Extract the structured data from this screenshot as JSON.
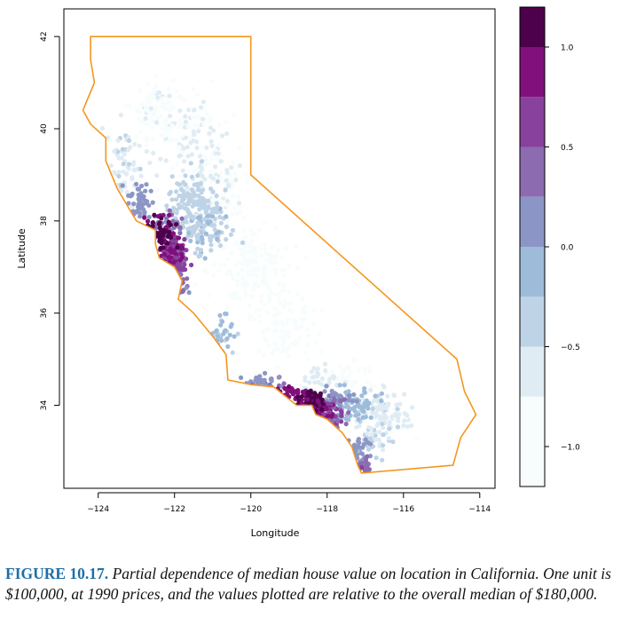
{
  "figure": {
    "caption_label": "FIGURE 10.17.",
    "caption_text": "Partial dependence of median house value on location in California. One unit is $100,000, at 1990 prices, and the values plotted are relative to the overall median of $180,000."
  },
  "chart_data": {
    "type": "scatter",
    "title": "",
    "xlabel": "Longitude",
    "ylabel": "Latitude",
    "xlim": [
      -124.9,
      -113.6
    ],
    "ylim": [
      32.2,
      42.6
    ],
    "xticks": [
      -124,
      -122,
      -120,
      -118,
      -116,
      -114
    ],
    "yticks": [
      34,
      36,
      38,
      40,
      42
    ],
    "xtick_labels": [
      "−124",
      "−122",
      "−120",
      "−118",
      "−116",
      "−114"
    ],
    "ytick_labels": [
      "34",
      "36",
      "38",
      "40",
      "42"
    ],
    "grid": false,
    "state_outline_color": "#f5961e",
    "state_outline": [
      [
        -124.2,
        42.0
      ],
      [
        -120.0,
        42.0
      ],
      [
        -120.0,
        39.0
      ],
      [
        -114.6,
        35.0
      ],
      [
        -114.4,
        34.3
      ],
      [
        -114.1,
        33.8
      ],
      [
        -114.5,
        33.3
      ],
      [
        -114.7,
        32.7
      ],
      [
        -117.1,
        32.53
      ],
      [
        -117.2,
        32.7
      ],
      [
        -117.35,
        33.1
      ],
      [
        -117.6,
        33.4
      ],
      [
        -118.0,
        33.7
      ],
      [
        -118.3,
        33.8
      ],
      [
        -118.4,
        34.0
      ],
      [
        -118.8,
        34.0
      ],
      [
        -119.4,
        34.4
      ],
      [
        -120.0,
        34.45
      ],
      [
        -120.6,
        34.55
      ],
      [
        -120.65,
        35.1
      ],
      [
        -121.0,
        35.5
      ],
      [
        -121.5,
        36.0
      ],
      [
        -121.9,
        36.3
      ],
      [
        -121.8,
        36.7
      ],
      [
        -122.0,
        37.0
      ],
      [
        -122.4,
        37.2
      ],
      [
        -122.5,
        37.5
      ],
      [
        -122.5,
        37.8
      ],
      [
        -123.0,
        38.0
      ],
      [
        -123.5,
        38.7
      ],
      [
        -123.8,
        39.3
      ],
      [
        -123.8,
        39.8
      ],
      [
        -124.2,
        40.1
      ],
      [
        -124.4,
        40.4
      ],
      [
        -124.1,
        41.0
      ],
      [
        -124.2,
        41.5
      ],
      [
        -124.2,
        42.0
      ]
    ],
    "colorbar": {
      "range": [
        -1.2,
        1.2
      ],
      "ticks": [
        1.0,
        0.5,
        0.0,
        -0.5,
        -1.0
      ],
      "tick_labels": [
        "1.0",
        "0.5",
        "0.0",
        "−0.5",
        "−1.0"
      ],
      "bins": [
        {
          "from": 1.0,
          "to": 1.2,
          "color": "#4d004b"
        },
        {
          "from": 0.75,
          "to": 1.0,
          "color": "#810f7c"
        },
        {
          "from": 0.5,
          "to": 0.75,
          "color": "#88419d"
        },
        {
          "from": 0.25,
          "to": 0.5,
          "color": "#8c6bb1"
        },
        {
          "from": 0.0,
          "to": 0.25,
          "color": "#8c96c6"
        },
        {
          "from": -0.25,
          "to": 0.0,
          "color": "#9ebcda"
        },
        {
          "from": -0.5,
          "to": -0.25,
          "color": "#bfd3e6"
        },
        {
          "from": -0.75,
          "to": -0.5,
          "color": "#e0ecf4"
        },
        {
          "from": -1.2,
          "to": -0.75,
          "color": "#f7fcfd"
        }
      ]
    },
    "clusters": [
      {
        "lon": -122.4,
        "lat": 37.75,
        "spread_lon": 0.35,
        "spread_lat": 0.35,
        "value": 1.05,
        "count": 70
      },
      {
        "lon": -122.1,
        "lat": 37.4,
        "spread_lon": 0.3,
        "spread_lat": 0.3,
        "value": 0.8,
        "count": 70
      },
      {
        "lon": -121.9,
        "lat": 37.2,
        "spread_lon": 0.25,
        "spread_lat": 0.25,
        "value": 0.55,
        "count": 50
      },
      {
        "lon": -121.95,
        "lat": 36.7,
        "spread_lon": 0.25,
        "spread_lat": 0.3,
        "value": 0.35,
        "count": 40
      },
      {
        "lon": -122.9,
        "lat": 38.4,
        "spread_lon": 0.35,
        "spread_lat": 0.4,
        "value": 0.1,
        "count": 50
      },
      {
        "lon": -122.2,
        "lat": 37.9,
        "spread_lon": 0.3,
        "spread_lat": 0.2,
        "value": 0.3,
        "count": 40
      },
      {
        "lon": -121.5,
        "lat": 38.4,
        "spread_lon": 0.6,
        "spread_lat": 0.5,
        "value": -0.4,
        "count": 130
      },
      {
        "lon": -121.2,
        "lat": 37.8,
        "spread_lon": 0.6,
        "spread_lat": 0.45,
        "value": -0.3,
        "count": 100
      },
      {
        "lon": -121.6,
        "lat": 39.8,
        "spread_lon": 0.9,
        "spread_lat": 0.9,
        "value": -0.75,
        "count": 160
      },
      {
        "lon": -122.6,
        "lat": 40.4,
        "spread_lon": 0.6,
        "spread_lat": 0.5,
        "value": -0.85,
        "count": 70
      },
      {
        "lon": -123.3,
        "lat": 39.3,
        "spread_lon": 0.4,
        "spread_lat": 0.7,
        "value": -0.55,
        "count": 60
      },
      {
        "lon": -120.7,
        "lat": 38.6,
        "spread_lon": 0.5,
        "spread_lat": 0.6,
        "value": -0.8,
        "count": 70
      },
      {
        "lon": -119.9,
        "lat": 36.9,
        "spread_lon": 0.9,
        "spread_lat": 0.8,
        "value": -1.0,
        "count": 170
      },
      {
        "lon": -119.0,
        "lat": 35.6,
        "spread_lon": 0.7,
        "spread_lat": 0.6,
        "value": -0.95,
        "count": 100
      },
      {
        "lon": -120.7,
        "lat": 35.5,
        "spread_lon": 0.35,
        "spread_lat": 0.4,
        "value": -0.2,
        "count": 40
      },
      {
        "lon": -119.7,
        "lat": 34.5,
        "spread_lon": 0.5,
        "spread_lat": 0.15,
        "value": 0.2,
        "count": 40
      },
      {
        "lon": -119.0,
        "lat": 34.3,
        "spread_lon": 0.4,
        "spread_lat": 0.15,
        "value": 0.9,
        "count": 45
      },
      {
        "lon": -118.4,
        "lat": 34.1,
        "spread_lon": 0.35,
        "spread_lat": 0.18,
        "value": 1.05,
        "count": 80
      },
      {
        "lon": -118.2,
        "lat": 33.85,
        "spread_lon": 0.3,
        "spread_lat": 0.2,
        "value": 0.8,
        "count": 70
      },
      {
        "lon": -117.9,
        "lat": 33.7,
        "spread_lon": 0.3,
        "spread_lat": 0.2,
        "value": 0.5,
        "count": 60
      },
      {
        "lon": -117.8,
        "lat": 34.1,
        "spread_lon": 0.35,
        "spread_lat": 0.2,
        "value": 0.2,
        "count": 60
      },
      {
        "lon": -117.3,
        "lat": 34.0,
        "spread_lon": 0.5,
        "spread_lat": 0.3,
        "value": -0.15,
        "count": 80
      },
      {
        "lon": -116.6,
        "lat": 33.9,
        "spread_lon": 0.5,
        "spread_lat": 0.4,
        "value": -0.6,
        "count": 70
      },
      {
        "lon": -117.2,
        "lat": 33.0,
        "spread_lon": 0.25,
        "spread_lat": 0.35,
        "value": 0.1,
        "count": 50
      },
      {
        "lon": -117.05,
        "lat": 32.7,
        "spread_lon": 0.15,
        "spread_lat": 0.15,
        "value": 0.4,
        "count": 25
      },
      {
        "lon": -116.8,
        "lat": 33.2,
        "spread_lon": 0.4,
        "spread_lat": 0.4,
        "value": -0.5,
        "count": 50
      },
      {
        "lon": -116.3,
        "lat": 33.7,
        "spread_lon": 0.6,
        "spread_lat": 0.3,
        "value": -0.75,
        "count": 40
      },
      {
        "lon": -117.4,
        "lat": 34.6,
        "spread_lon": 0.6,
        "spread_lat": 0.3,
        "value": -0.85,
        "count": 40
      },
      {
        "lon": -118.1,
        "lat": 34.6,
        "spread_lon": 0.4,
        "spread_lat": 0.2,
        "value": -0.6,
        "count": 30
      },
      {
        "lon": -118.7,
        "lat": 33.35,
        "spread_lon": 0.2,
        "spread_lat": 0.1,
        "value": 1.1,
        "count": 4
      }
    ]
  }
}
